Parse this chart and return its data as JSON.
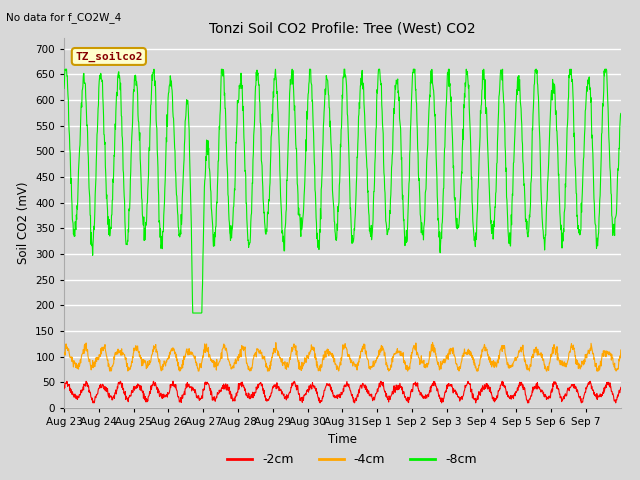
{
  "title": "Tonzi Soil CO2 Profile: Tree (West) CO2",
  "subtitle": "No data for f_CO2W_4",
  "ylabel": "Soil CO2 (mV)",
  "xlabel": "Time",
  "legend_label": "TZ_soilco2",
  "series_labels": [
    "-2cm",
    "-4cm",
    "-8cm"
  ],
  "series_colors": [
    "#ff0000",
    "#ffa500",
    "#00ee00"
  ],
  "ylim": [
    0,
    720
  ],
  "yticks": [
    0,
    50,
    100,
    150,
    200,
    250,
    300,
    350,
    400,
    450,
    500,
    550,
    600,
    650,
    700
  ],
  "xtick_labels": [
    "Aug 23",
    "Aug 24",
    "Aug 25",
    "Aug 26",
    "Aug 27",
    "Aug 28",
    "Aug 29",
    "Aug 30",
    "Aug 31",
    "Sep 1",
    "Sep 2",
    "Sep 3",
    "Sep 4",
    "Sep 5",
    "Sep 6",
    "Sep 7"
  ],
  "background_color": "#d8d8d8",
  "plot_bg_color": "#d8d8d8",
  "grid_color": "#ffffff",
  "legend_box_color": "#ffffcc",
  "legend_box_edge": "#cc9900"
}
